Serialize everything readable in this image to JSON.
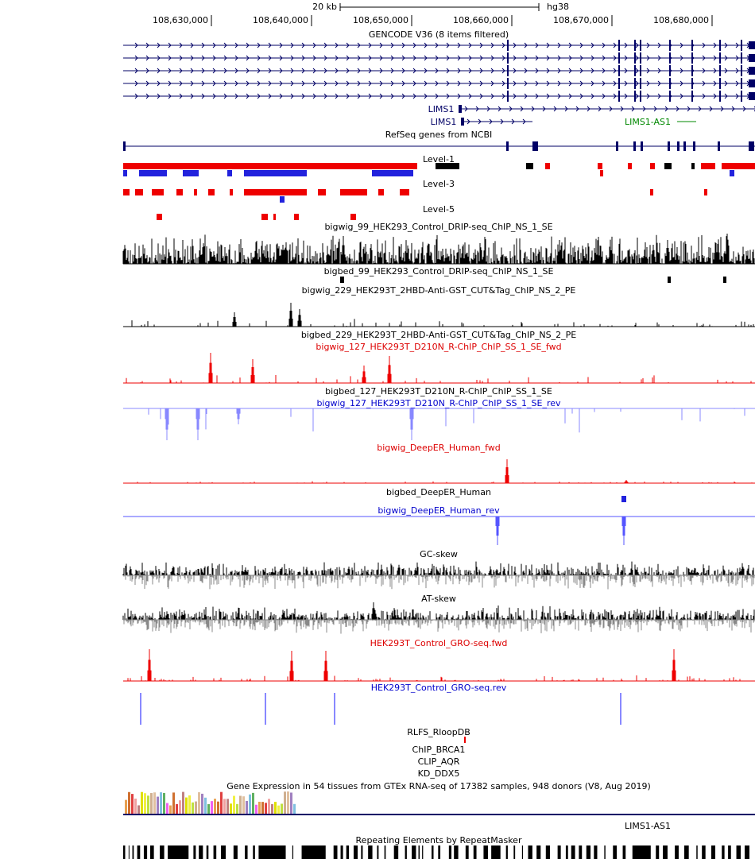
{
  "header": {
    "scale": "20 kb",
    "assembly": "hg38",
    "positions": [
      "108,630,000",
      "108,640,000",
      "108,650,000",
      "108,660,000",
      "108,670,000",
      "108,680,000"
    ]
  },
  "tracks": [
    "GENCODE V36 (8 items filtered)",
    "RefSeq genes from NCBI",
    "Level-1",
    "Level-3",
    "Level-5",
    "bigwig_99_HEK293_Control_DRIP-seq_ChIP_NS_1_SE",
    "bigbed_99_HEK293_Control_DRIP-seq_ChIP_NS_1_SE",
    "bigwig_229_HEK293T_2HBD-Anti-GST_CUT&Tag_ChIP_NS_2_PE",
    "bigbed_229_HEK293T_2HBD-Anti-GST_CUT&Tag_ChIP_NS_2_PE",
    "bigwig_127_HEK293T_D210N_R-ChIP_ChIP_SS_1_SE_fwd",
    "bigbed_127_HEK293T_D210N_R-ChIP_ChIP_SS_1_SE",
    "bigwig_127_HEK293T_D210N_R-ChIP_ChIP_SS_1_SE_rev",
    "bigwig_DeepER_Human_fwd",
    "bigbed_DeepER_Human",
    "bigwig_DeepER_Human_rev",
    "GC-skew",
    "AT-skew",
    "HEK293T_Control_GRO-seq.fwd",
    "HEK293T_Control_GRO-seq.rev",
    "RLFS_RloopDB",
    "ChIP_BRCA1",
    "CLIP_AQR",
    "KD_DDX5",
    "Gene Expression in 54 tissues from GTEx RNA-seq of 17382 samples, 948 donors (V8, Aug 2019)",
    "Repeating Elements by RepeatMasker"
  ],
  "genes": [
    "LIMS1",
    "LIMS1",
    "LIMS1-AS1",
    "LIMS1-AS1"
  ]
}
